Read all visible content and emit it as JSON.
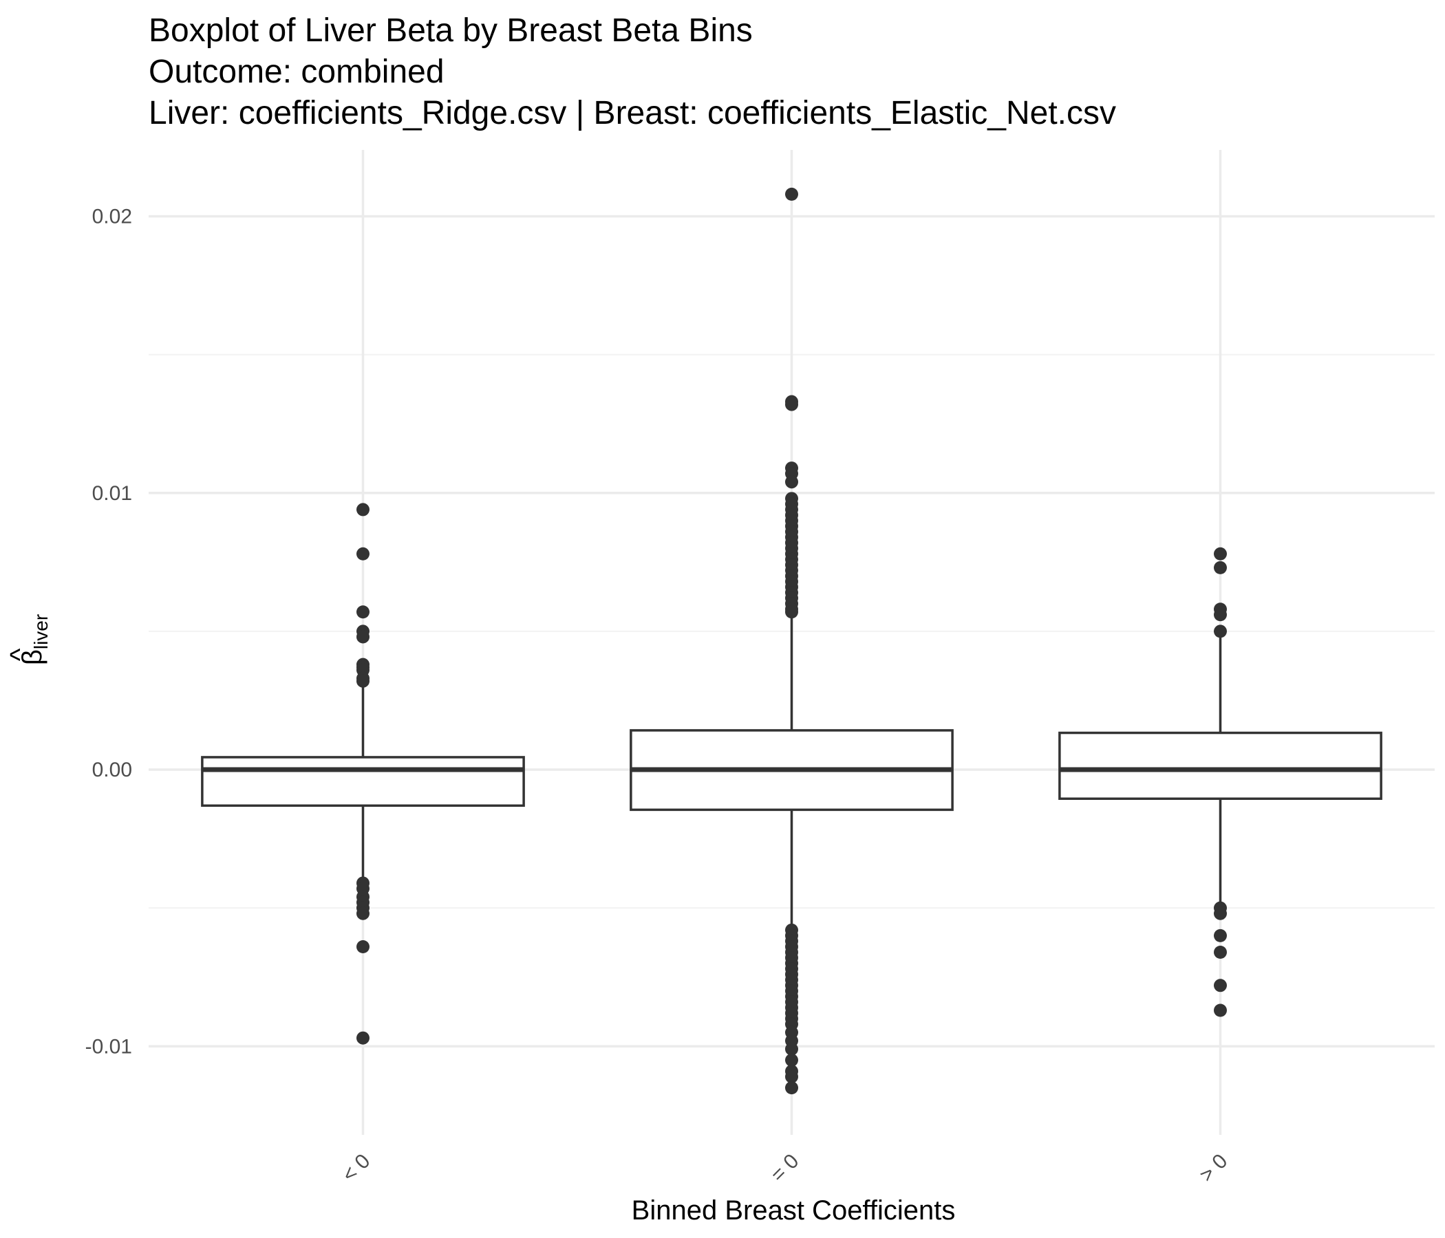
{
  "chart_data": {
    "type": "box",
    "title": "Boxplot of Liver Beta by Breast Beta Bins",
    "subtitle_lines": [
      "Outcome: combined",
      "Liver: coefficients_Ridge.csv | Breast: coefficients_Elastic_Net.csv"
    ],
    "xlabel": "Binned Breast Coefficients",
    "ylabel": {
      "symbol": "β",
      "hat": "^",
      "subscript": "liver"
    },
    "ylim": [
      -0.0132,
      0.0224
    ],
    "y_ticks": [
      {
        "value": 0.02,
        "label": "0.02"
      },
      {
        "value": 0.01,
        "label": "0.01"
      },
      {
        "value": 0.0,
        "label": "0.00"
      },
      {
        "value": -0.01,
        "label": "-0.01"
      }
    ],
    "y_minor": [
      0.015,
      0.005,
      -0.005
    ],
    "grid": true,
    "categories": [
      "< 0",
      "= 0",
      "> 0"
    ],
    "boxes": [
      {
        "category": "< 0",
        "q1": -0.0013,
        "median": 0.0,
        "q3": 0.00045,
        "whisker_low": -0.004,
        "whisker_high": 0.003,
        "outliers": [
          0.0094,
          0.0078,
          0.0057,
          0.005,
          0.0048,
          0.0038,
          0.0037,
          0.0036,
          0.0033,
          0.0032,
          -0.0041,
          -0.0043,
          -0.0046,
          -0.0048,
          -0.005,
          -0.0052,
          -0.0064,
          -0.0097
        ]
      },
      {
        "category": "= 0",
        "q1": -0.00145,
        "median": 0.0,
        "q3": 0.00142,
        "whisker_low": -0.0057,
        "whisker_high": 0.0056,
        "outliers": [
          0.0208,
          0.0133,
          0.0132,
          0.0109,
          0.0107,
          0.0104,
          0.0098,
          0.0096,
          0.0094,
          0.0092,
          0.009,
          0.0088,
          0.0086,
          0.0084,
          0.0082,
          0.008,
          0.0078,
          0.0076,
          0.0074,
          0.0072,
          0.007,
          0.0068,
          0.0066,
          0.0064,
          0.0062,
          0.006,
          0.0058,
          0.0057,
          -0.0058,
          -0.006,
          -0.0062,
          -0.0064,
          -0.0066,
          -0.0068,
          -0.007,
          -0.0072,
          -0.0074,
          -0.0076,
          -0.0078,
          -0.008,
          -0.0082,
          -0.0084,
          -0.0086,
          -0.0088,
          -0.009,
          -0.0092,
          -0.0095,
          -0.0098,
          -0.0101,
          -0.0105,
          -0.0109,
          -0.0111,
          -0.0115
        ]
      },
      {
        "category": "> 0",
        "q1": -0.00105,
        "median": 0.0,
        "q3": 0.00133,
        "whisker_low": -0.0048,
        "whisker_high": 0.0049,
        "outliers": [
          0.0078,
          0.0073,
          0.0058,
          0.0056,
          0.005,
          -0.005,
          -0.0052,
          -0.006,
          -0.0066,
          -0.0078,
          -0.0087
        ]
      }
    ]
  }
}
